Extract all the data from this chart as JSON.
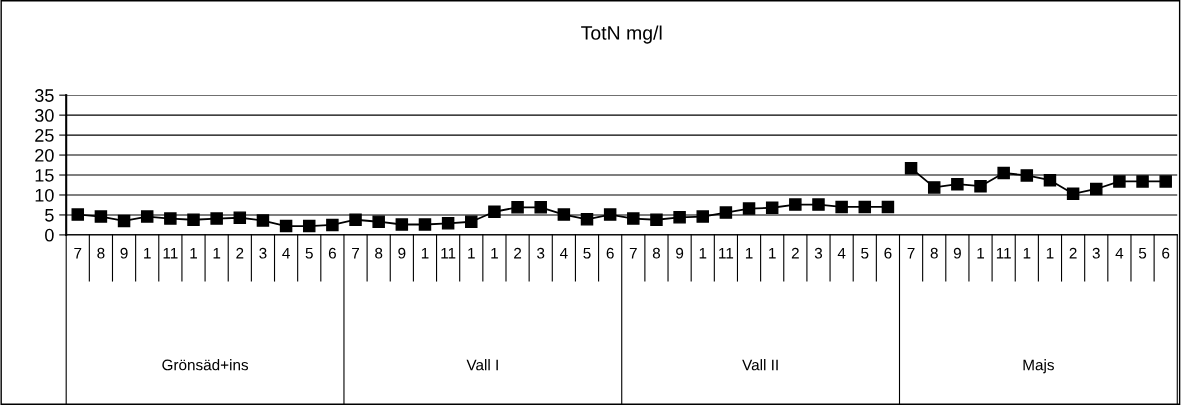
{
  "chart_data": {
    "type": "line",
    "title": "TotN mg/l",
    "categories": [
      "7",
      "8",
      "9",
      "1",
      "11",
      "1",
      "1",
      "2",
      "3",
      "4",
      "5",
      "6",
      "7",
      "8",
      "9",
      "1",
      "11",
      "1",
      "1",
      "2",
      "3",
      "4",
      "5",
      "6",
      "7",
      "8",
      "9",
      "1",
      "11",
      "1",
      "1",
      "2",
      "3",
      "4",
      "5",
      "6",
      "7",
      "8",
      "9",
      "1",
      "11",
      "1",
      "1",
      "2",
      "3",
      "4",
      "5",
      "6"
    ],
    "series": [
      {
        "color": "#000000",
        "values": [
          5.1,
          4.6,
          3.5,
          4.6,
          4.1,
          3.8,
          4.1,
          4.3,
          3.6,
          2.2,
          2.2,
          2.5,
          3.8,
          3.3,
          2.6,
          2.6,
          2.9,
          3.3,
          5.8,
          6.9,
          6.9,
          5.1,
          3.9,
          5.1,
          4.1,
          3.8,
          4.4,
          4.6,
          5.6,
          6.6,
          6.8,
          7.6,
          7.6,
          7.0,
          7.0,
          7.0,
          null,
          null,
          null,
          null,
          null,
          null,
          null,
          null,
          null,
          null,
          null,
          null
        ]
      },
      {
        "color": "#000000",
        "values": [
          null,
          null,
          null,
          null,
          null,
          null,
          null,
          null,
          null,
          null,
          null,
          null,
          null,
          null,
          null,
          null,
          null,
          null,
          null,
          null,
          null,
          null,
          null,
          null,
          null,
          null,
          null,
          null,
          null,
          null,
          null,
          null,
          null,
          null,
          null,
          null,
          16.7,
          11.9,
          12.7,
          12.2,
          15.5,
          14.9,
          13.7,
          10.3,
          11.5,
          13.4,
          13.4,
          13.4
        ]
      }
    ],
    "annotations": [
      "Grönsäd+ins",
      "Vall I",
      "Vall II",
      "Majs"
    ],
    "ylim": [
      0,
      35
    ],
    "yticks": [
      0,
      5,
      10,
      15,
      20,
      25,
      30,
      35
    ],
    "grid": "y",
    "marker": "square",
    "line_style": "solid"
  }
}
